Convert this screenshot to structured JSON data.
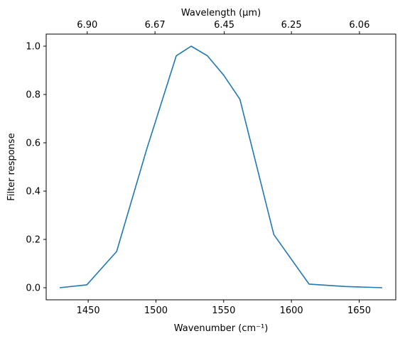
{
  "chart_data": {
    "type": "line",
    "xlabel": "Wavenumber (cm⁻¹)",
    "ylabel": "Filter response",
    "top_xlabel": "Wavelength (μm)",
    "xlim": [
      1419,
      1677
    ],
    "ylim": [
      -0.05,
      1.05
    ],
    "grid": false,
    "line_color": "#1f77b4",
    "x_ticks": [
      1450,
      1500,
      1550,
      1600,
      1650
    ],
    "x_tick_labels": [
      "1450",
      "1500",
      "1550",
      "1600",
      "1650"
    ],
    "y_ticks": [
      0.0,
      0.2,
      0.4,
      0.6,
      0.8,
      1.0
    ],
    "y_tick_labels": [
      "0.0",
      "0.2",
      "0.4",
      "0.6",
      "0.8",
      "1.0"
    ],
    "top_ticks": [
      1449.3,
      1499.3,
      1550.4,
      1600.0,
      1650.2
    ],
    "top_tick_labels": [
      "6.90",
      "6.67",
      "6.45",
      "6.25",
      "6.06"
    ],
    "series": [
      {
        "x": [
          1429,
          1449,
          1471,
          1493,
          1515,
          1526,
          1538,
          1550,
          1562,
          1587,
          1613,
          1640,
          1667
        ],
        "y": [
          0.0,
          0.012,
          0.15,
          0.57,
          0.96,
          1.0,
          0.96,
          0.88,
          0.78,
          0.22,
          0.015,
          0.005,
          0.0
        ]
      }
    ]
  }
}
